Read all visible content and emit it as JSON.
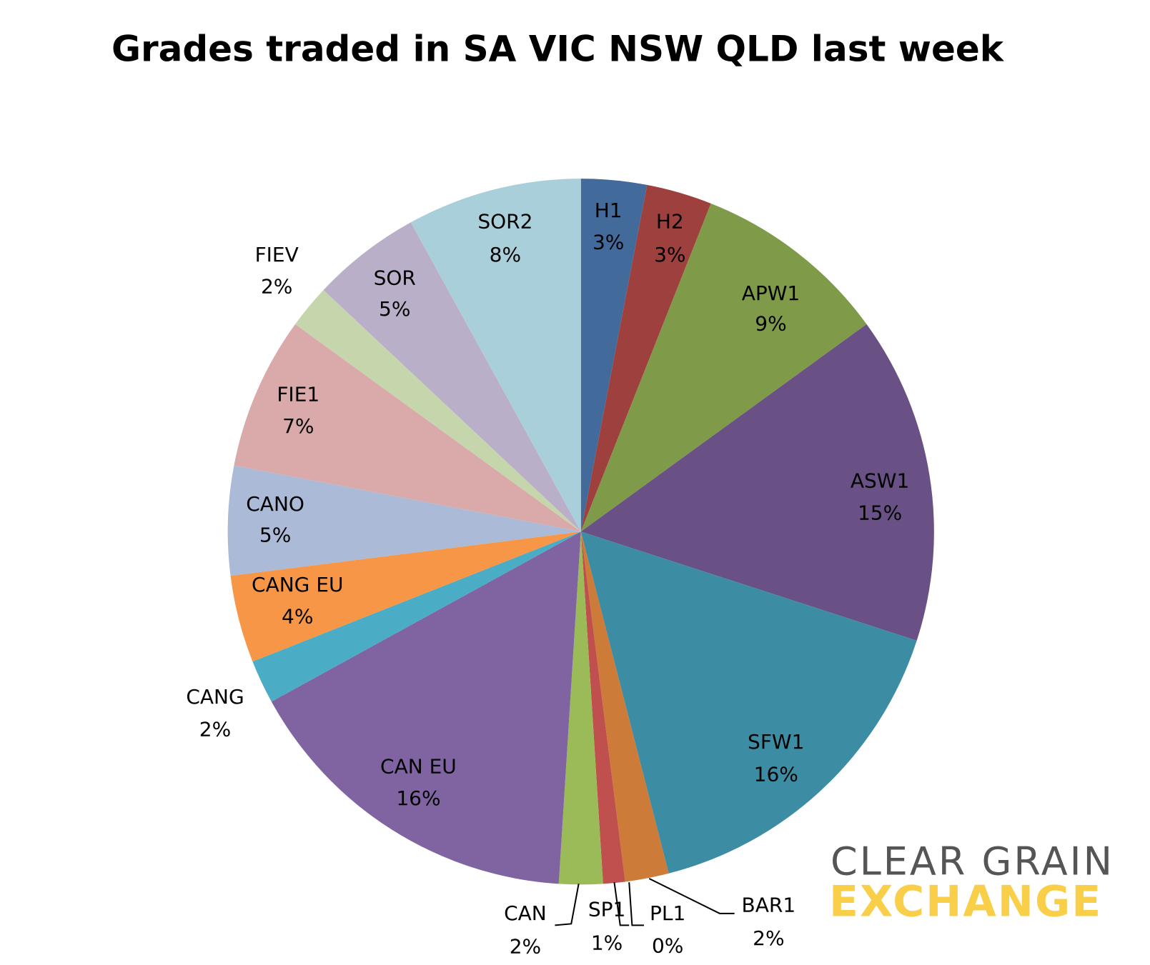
{
  "chart_data": {
    "type": "pie",
    "title": "Grades traded in SA VIC NSW QLD last week",
    "categories": [
      "H1",
      "H2",
      "APW1",
      "ASW1",
      "SFW1",
      "BAR1",
      "PL1",
      "SP1",
      "CAN",
      "CAN EU",
      "CANG",
      "CANG EU",
      "CANO",
      "FIE1",
      "FIEV",
      "SOR",
      "SOR2"
    ],
    "values": [
      3,
      3,
      9,
      15,
      16,
      2,
      0,
      1,
      2,
      16,
      2,
      4,
      5,
      7,
      2,
      5,
      8
    ],
    "value_labels": [
      "3%",
      "3%",
      "9%",
      "15%",
      "16%",
      "2%",
      "0%",
      "1%",
      "2%",
      "16%",
      "2%",
      "4%",
      "5%",
      "7%",
      "2%",
      "5%",
      "8%"
    ],
    "colors": [
      "#426a9a",
      "#9e413e",
      "#7f9a48",
      "#695185",
      "#3c8da3",
      "#cc7b38",
      "#4f81bd",
      "#c0504d",
      "#9bbb59",
      "#8064a2",
      "#4bacc6",
      "#f79646",
      "#aabad7",
      "#d9aaa9",
      "#c6d6ac",
      "#baafc9",
      "#a9cfdb"
    ]
  },
  "logo": {
    "line1": "CLEAR GRAIN",
    "line2": "EXCHANGE"
  }
}
